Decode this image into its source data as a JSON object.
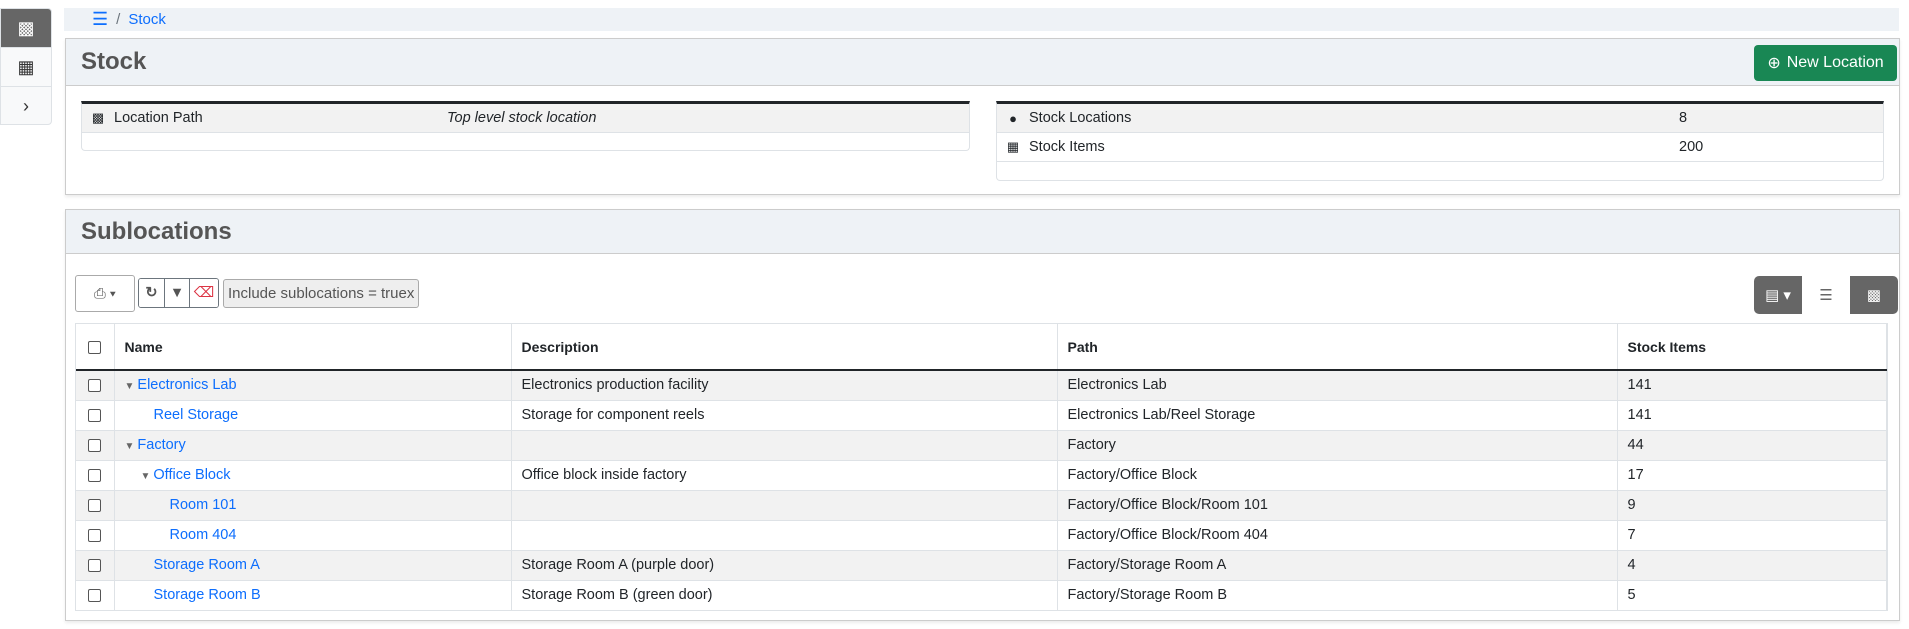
{
  "sidebar": {
    "items": [
      {
        "icon": "sitemap-icon",
        "active": true
      },
      {
        "icon": "boxes-icon"
      },
      {
        "icon": "chevron-right-icon"
      }
    ]
  },
  "breadcrumb": {
    "menu_icon": "bars-icon",
    "separator": "/",
    "current": "Stock"
  },
  "stock_panel": {
    "title": "Stock",
    "new_button": "New Location",
    "info_left": [
      {
        "icon": "sitemap-icon",
        "label": "Location Path",
        "value": "Top level stock location"
      }
    ],
    "info_right": [
      {
        "icon": "map-marker-icon",
        "label": "Stock Locations",
        "value": "8"
      },
      {
        "icon": "boxes-icon",
        "label": "Stock Items",
        "value": "200"
      }
    ]
  },
  "sublocations": {
    "title": "Sublocations",
    "filter_chip": "Include sublocations = true",
    "filter_chip_close": "x",
    "columns": [
      "Name",
      "Description",
      "Path",
      "Stock Items"
    ],
    "rows": [
      {
        "name": "Electronics Lab",
        "level": 0,
        "expanded": true,
        "description": "Electronics production facility",
        "path": "Electronics Lab",
        "stock": "141"
      },
      {
        "name": "Reel Storage",
        "level": 1,
        "expanded": false,
        "description": "Storage for component reels",
        "path": "Electronics Lab/Reel Storage",
        "stock": "141"
      },
      {
        "name": "Factory",
        "level": 0,
        "expanded": true,
        "description": "",
        "path": "Factory",
        "stock": "44"
      },
      {
        "name": "Office Block",
        "level": 1,
        "expanded": true,
        "description": "Office block inside factory",
        "path": "Factory/Office Block",
        "stock": "17"
      },
      {
        "name": "Room 101",
        "level": 2,
        "expanded": false,
        "description": "",
        "path": "Factory/Office Block/Room 101",
        "stock": "9"
      },
      {
        "name": "Room 404",
        "level": 2,
        "expanded": false,
        "description": "",
        "path": "Factory/Office Block/Room 404",
        "stock": "7"
      },
      {
        "name": "Storage Room A",
        "level": 1,
        "expanded": false,
        "description": "Storage Room A (purple door)",
        "path": "Factory/Storage Room A",
        "stock": "4"
      },
      {
        "name": "Storage Room B",
        "level": 1,
        "expanded": false,
        "description": "Storage Room B (green door)",
        "path": "Factory/Storage Room B",
        "stock": "5"
      }
    ]
  },
  "colors": {
    "accent": "#0d6efd",
    "success": "#198754",
    "danger": "#dc3545"
  }
}
